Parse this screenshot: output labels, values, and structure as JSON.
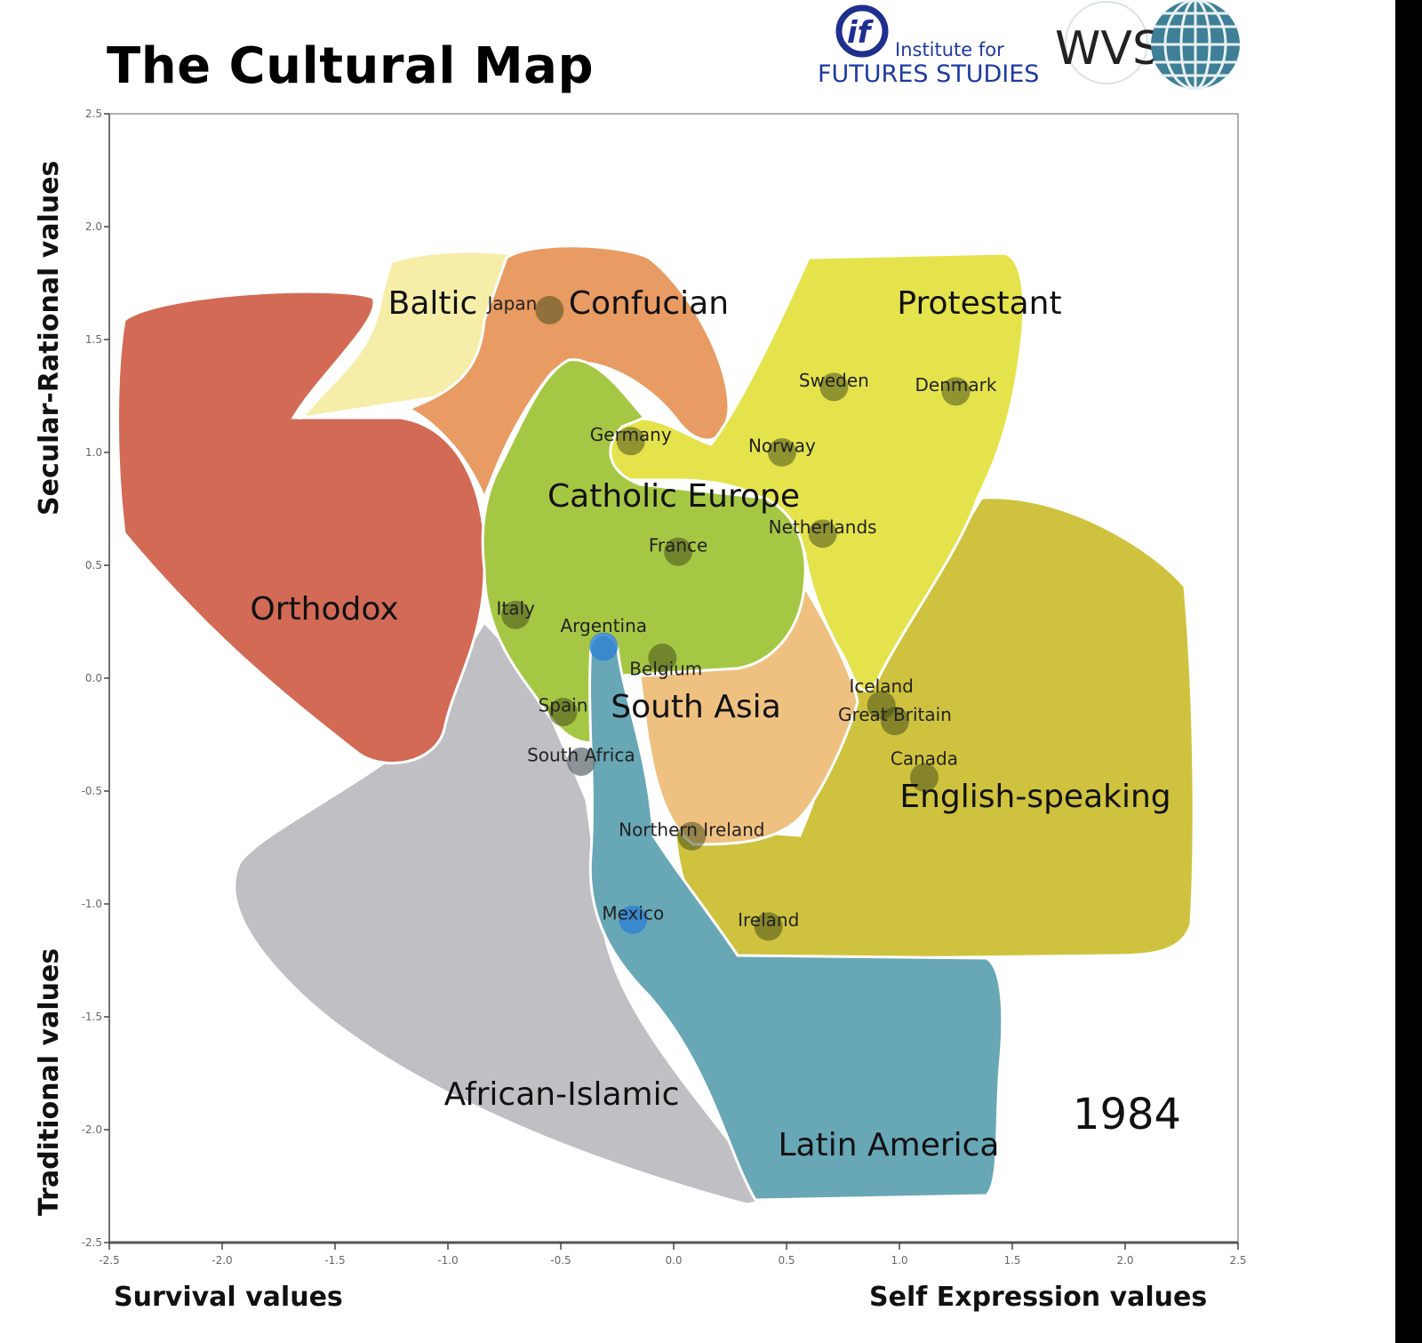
{
  "title": "The Cultural Map",
  "logos": {
    "iffs_line1": "Institute for",
    "iffs_line2": "FUTURES STUDIES",
    "wvs": "WVS"
  },
  "chart_data": {
    "type": "scatter",
    "year": "1984",
    "xlim": [
      -2.5,
      2.5
    ],
    "ylim": [
      -2.5,
      2.5
    ],
    "x_ticks": [
      "-2.5",
      "-2.0",
      "-1.5",
      "-1.0",
      "-0.5",
      "0.0",
      "0.5",
      "1.0",
      "1.5",
      "2.0",
      "2.5"
    ],
    "y_ticks": [
      "2.5",
      "2.0",
      "1.5",
      "1.0",
      "0.5",
      "0.0",
      "-0.5",
      "-1.0",
      "-1.5",
      "-2.0",
      "-2.5"
    ],
    "xlabel_left": "Survival values",
    "xlabel_right": "Self Expression values",
    "ylabel_top": "Secular-Rational values",
    "ylabel_bottom": "Traditional values",
    "grid": false,
    "regions": [
      {
        "name": "African-Islamic",
        "color": "#c0bfc3"
      },
      {
        "name": "Orthodox",
        "color": "#d26a55"
      },
      {
        "name": "Baltic",
        "color": "#f6eea8"
      },
      {
        "name": "Confucian",
        "color": "#e89b62"
      },
      {
        "name": "English-speaking",
        "color": "#cfc23e"
      },
      {
        "name": "Protestant",
        "color": "#e4e34c"
      },
      {
        "name": "South Asia",
        "color": "#efc181"
      },
      {
        "name": "Catholic Europe",
        "color": "#a6c744"
      },
      {
        "name": "Latin America",
        "color": "#67a7b6"
      }
    ],
    "points": [
      {
        "name": "Japan",
        "x": -0.55,
        "y": 1.63
      },
      {
        "name": "Sweden",
        "x": 0.71,
        "y": 1.29
      },
      {
        "name": "Denmark",
        "x": 1.25,
        "y": 1.27
      },
      {
        "name": "Germany",
        "x": -0.19,
        "y": 1.05
      },
      {
        "name": "Norway",
        "x": 0.48,
        "y": 1.0
      },
      {
        "name": "Netherlands",
        "x": 0.66,
        "y": 0.64
      },
      {
        "name": "France",
        "x": 0.02,
        "y": 0.56
      },
      {
        "name": "Italy",
        "x": -0.7,
        "y": 0.28
      },
      {
        "name": "Argentina",
        "x": -0.31,
        "y": 0.14
      },
      {
        "name": "Belgium",
        "x": -0.05,
        "y": 0.09
      },
      {
        "name": "Spain",
        "x": -0.49,
        "y": -0.15
      },
      {
        "name": "South Africa",
        "x": -0.41,
        "y": -0.37
      },
      {
        "name": "Iceland",
        "x": 0.92,
        "y": -0.12
      },
      {
        "name": "Great Britain",
        "x": 0.98,
        "y": -0.19
      },
      {
        "name": "Canada",
        "x": 1.11,
        "y": -0.44
      },
      {
        "name": "Northern Ireland",
        "x": 0.08,
        "y": -0.7
      },
      {
        "name": "Mexico",
        "x": -0.18,
        "y": -1.07
      },
      {
        "name": "Ireland",
        "x": 0.42,
        "y": -1.1
      }
    ]
  }
}
